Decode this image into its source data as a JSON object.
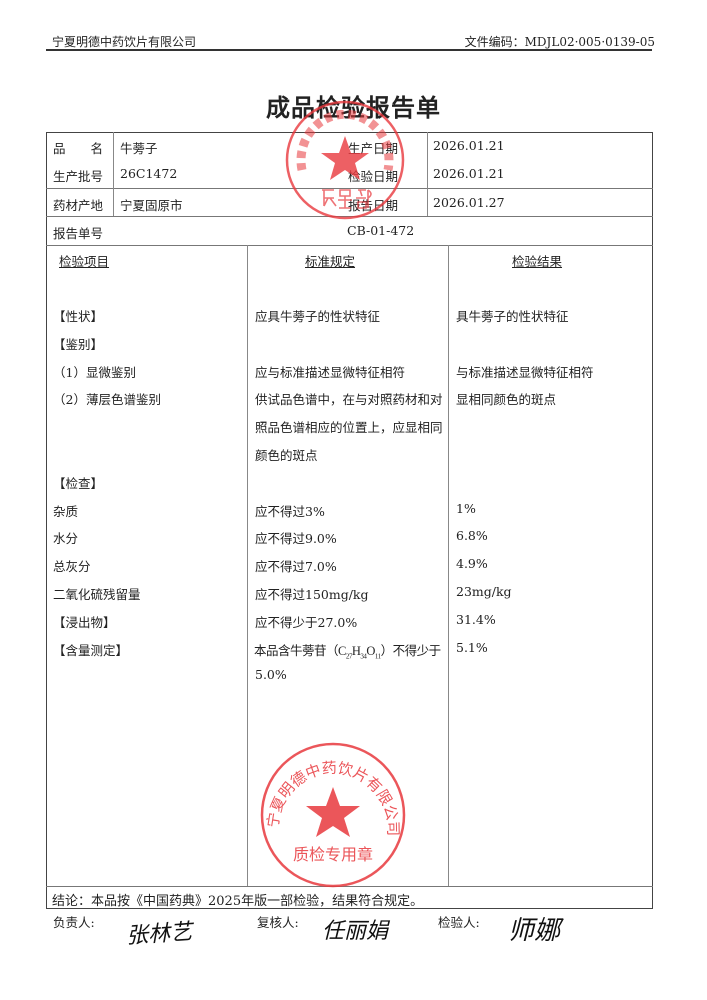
{
  "header": {
    "company": "宁夏明德中药饮片有限公司",
    "doc_code": "文件编码：MDJL02·005·0139-05"
  },
  "title": "成品检验报告单",
  "info": {
    "name_label": "品　　名",
    "name": "牛蒡子",
    "batch_label": "生产批号",
    "batch": "26C1472",
    "origin_label": "药材产地",
    "origin": "宁夏固原市",
    "prod_date_label": "生产日期",
    "prod_date": "2026.01.21",
    "test_date_label": "检验日期",
    "test_date": "2026.01.21",
    "report_date_label": "报告日期",
    "report_date": "2026.01.27",
    "report_no_label": "报告单号",
    "report_no": "CB-01-472"
  },
  "columns": [
    "检验项目",
    "标准规定",
    "检验结果"
  ],
  "rows": [
    {
      "item": "【性状】",
      "standard": "应具牛蒡子的性状特征",
      "result": "具牛蒡子的性状特征"
    },
    {
      "item": "【鉴别】",
      "standard": "",
      "result": ""
    },
    {
      "item": "（1）显微鉴别",
      "standard": "应与标准描述显微特征相符",
      "result": "与标准描述显微特征相符"
    },
    {
      "item": "（2）薄层色谱鉴别",
      "standard": "供试品色谱中，在与对照药材和对",
      "result": "显相同颜色的斑点"
    },
    {
      "item": "",
      "standard": "照品色谱相应的位置上，应显相同",
      "result": ""
    },
    {
      "item": "",
      "standard": "颜色的斑点",
      "result": ""
    },
    {
      "item": "【检查】",
      "standard": "",
      "result": ""
    },
    {
      "item": "杂质",
      "standard": "应不得过3%",
      "result": "1%"
    },
    {
      "item": "水分",
      "standard": "应不得过9.0%",
      "result": "6.8%"
    },
    {
      "item": "总灰分",
      "standard": "应不得过7.0%",
      "result": "4.9%"
    },
    {
      "item": "二氧化硫残留量",
      "standard": "应不得过150mg/kg",
      "result": "23mg/kg"
    },
    {
      "item": "【浸出物】",
      "standard": "应不得少于27.0%",
      "result": "31.4%"
    },
    {
      "item": "【含量测定】",
      "standard": "",
      "result": "5.1%"
    },
    {
      "item": "",
      "standard": "5.0%",
      "result": ""
    }
  ],
  "assay_standard": {
    "pre": "本品含牛蒡苷（C",
    "s1": "27",
    "h": "H",
    "s2": "34",
    "o": "O",
    "s3": "11",
    "post": "）不得少于"
  },
  "conclusion": "结论：本品按《中国药典》2025年版一部检验，结果符合规定。",
  "signatures": {
    "responsible_label": "负责人:",
    "responsible": "张林艺",
    "reviewer_label": "复核人:",
    "reviewer": "任丽娟",
    "inspector_label": "检验人:",
    "inspector": "师娜"
  },
  "stamps": {
    "top": {
      "ring": "宁夏明德中药饮片有限公司",
      "center": "质量部"
    },
    "bottom": {
      "ring": "宁夏明德中药饮片有限公司",
      "center": "质检专用章"
    }
  },
  "colors": {
    "stamp": "#e8383d"
  }
}
